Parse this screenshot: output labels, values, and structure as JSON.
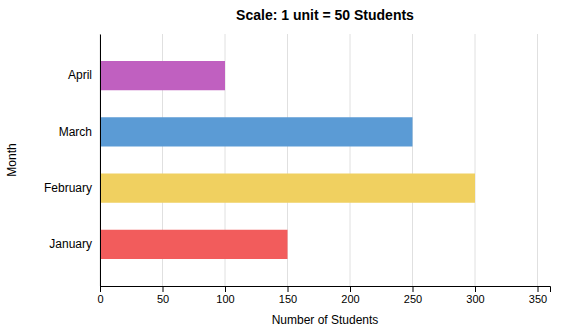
{
  "chart_data": {
    "type": "bar",
    "orientation": "horizontal",
    "title": "Scale: 1 unit = 50 Students",
    "xlabel": "Number of Students",
    "ylabel": "Month",
    "categories": [
      "January",
      "February",
      "March",
      "April"
    ],
    "values": [
      150,
      300,
      250,
      100
    ],
    "colors": [
      "#F25C5C",
      "#F0D060",
      "#5B9BD5",
      "#C060C0"
    ],
    "xlim": [
      0,
      360
    ],
    "xticks": [
      0,
      50,
      100,
      150,
      200,
      250,
      300,
      350
    ],
    "grid": true
  }
}
